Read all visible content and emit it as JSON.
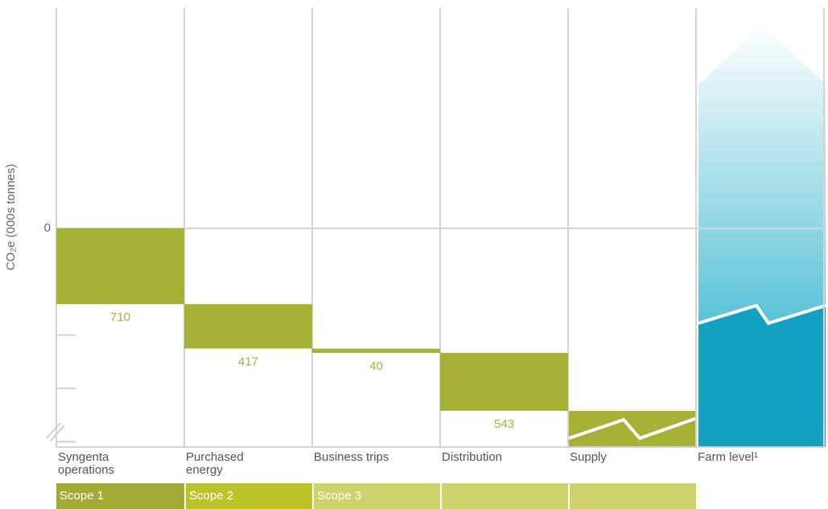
{
  "chart_data": {
    "type": "waterfall",
    "y_label": "CO₂e (000s tonnes)",
    "categories": [
      "Syngenta operations",
      "Purchased energy",
      "Business trips",
      "Distribution",
      "Supply",
      "Farm level¹"
    ],
    "values": [
      710,
      417,
      40,
      543,
      null,
      null
    ],
    "color": "#a7b136",
    "ylim": [
      0,
      2050
    ],
    "yticks": [
      0
    ],
    "minor_yticks": [
      500,
      1000,
      1500,
      2000
    ],
    "scopes": [
      {
        "name": "Scope 1",
        "color": "#a3aa35",
        "columns": 1
      },
      {
        "name": "Scope 2",
        "color": "#bcc22c",
        "columns": 1
      },
      {
        "name": "Scope 3",
        "color": "#cdd36a",
        "columns": 3
      }
    ]
  }
}
